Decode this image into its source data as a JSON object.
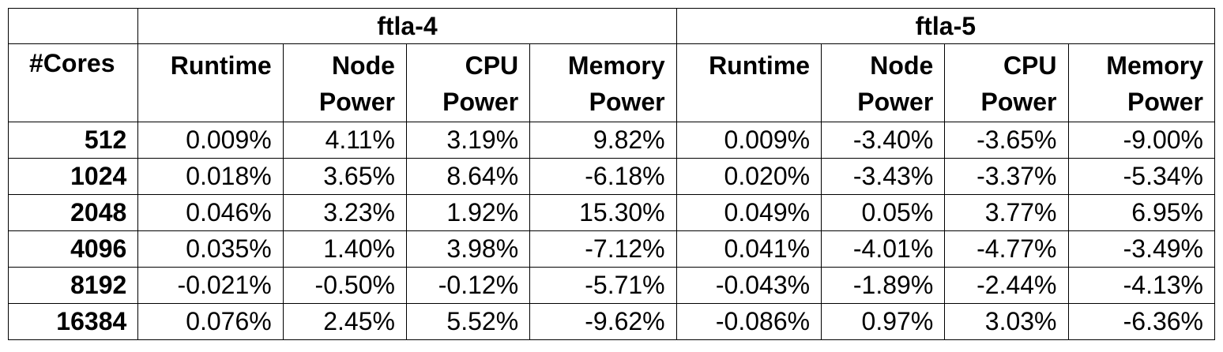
{
  "groups": [
    "ftla-4",
    "ftla-5"
  ],
  "cores_header": "#Cores",
  "columns": [
    {
      "line1": "Runtime",
      "line2": ""
    },
    {
      "line1": "Node",
      "line2": "Power"
    },
    {
      "line1": "CPU",
      "line2": "Power"
    },
    {
      "line1": "Memory",
      "line2": "Power"
    }
  ],
  "rows": [
    {
      "cores": "512",
      "ftla4": [
        "0.009%",
        "4.11%",
        "3.19%",
        "9.82%"
      ],
      "ftla5": [
        "0.009%",
        "-3.40%",
        "-3.65%",
        "-9.00%"
      ]
    },
    {
      "cores": "1024",
      "ftla4": [
        "0.018%",
        "3.65%",
        "8.64%",
        "-6.18%"
      ],
      "ftla5": [
        "0.020%",
        "-3.43%",
        "-3.37%",
        "-5.34%"
      ]
    },
    {
      "cores": "2048",
      "ftla4": [
        "0.046%",
        "3.23%",
        "1.92%",
        "15.30%"
      ],
      "ftla5": [
        "0.049%",
        "0.05%",
        "3.77%",
        "6.95%"
      ]
    },
    {
      "cores": "4096",
      "ftla4": [
        "0.035%",
        "1.40%",
        "3.98%",
        "-7.12%"
      ],
      "ftla5": [
        "0.041%",
        "-4.01%",
        "-4.77%",
        "-3.49%"
      ]
    },
    {
      "cores": "8192",
      "ftla4": [
        "-0.021%",
        "-0.50%",
        "-0.12%",
        "-5.71%"
      ],
      "ftla5": [
        "-0.043%",
        "-1.89%",
        "-2.44%",
        "-4.13%"
      ]
    },
    {
      "cores": "16384",
      "ftla4": [
        "0.076%",
        "2.45%",
        "5.52%",
        "-9.62%"
      ],
      "ftla5": [
        "-0.086%",
        "0.97%",
        "3.03%",
        "-6.36%"
      ]
    }
  ]
}
